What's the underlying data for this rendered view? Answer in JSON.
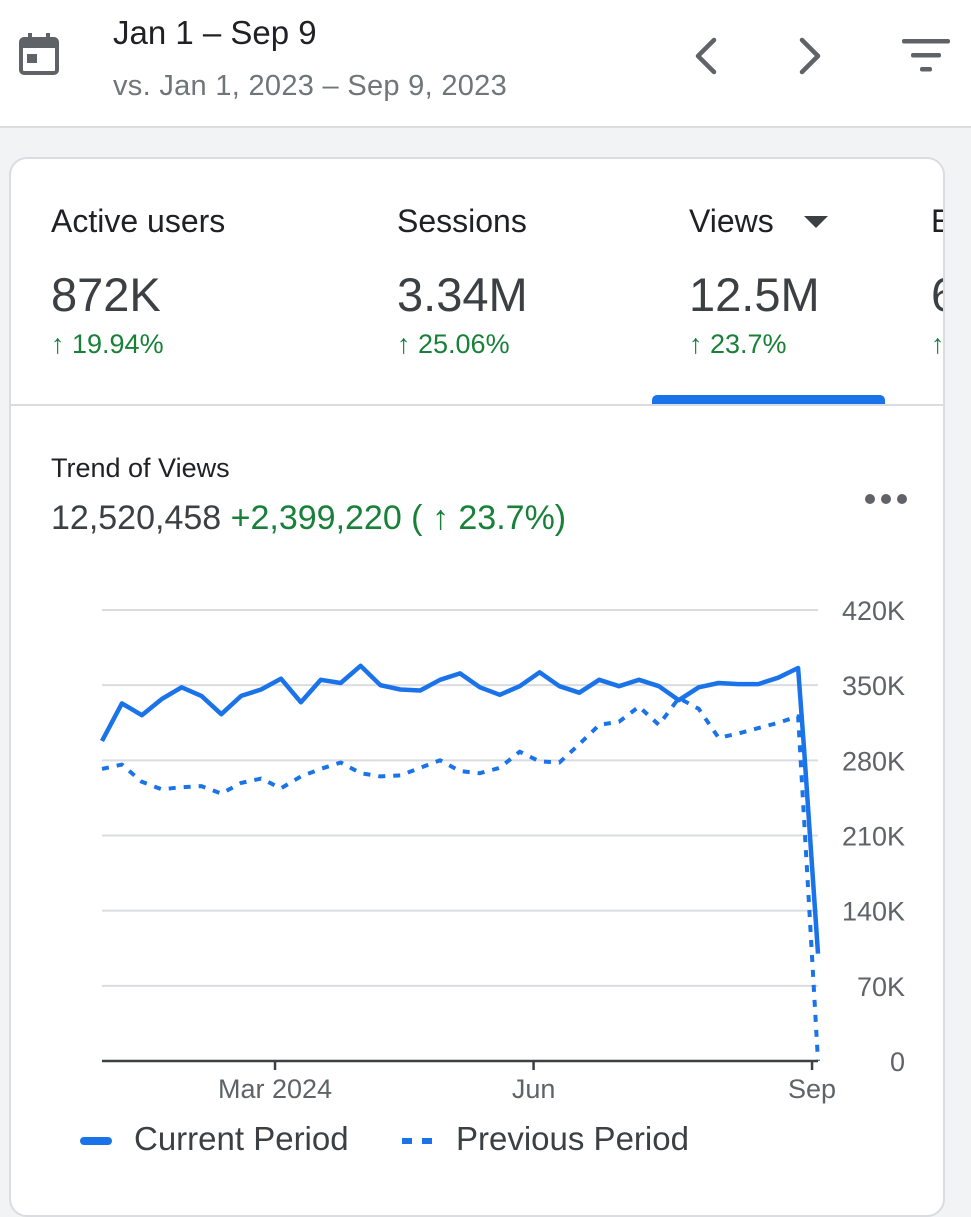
{
  "header": {
    "date_range": "Jan 1 – Sep 9",
    "comparison": "vs. Jan 1, 2023 – Sep 9, 2023",
    "icons": [
      "calendar-icon",
      "chevron-left-icon",
      "chevron-right-icon",
      "filter-icon"
    ]
  },
  "metrics": [
    {
      "label": "Active users",
      "value": "872K",
      "change": "↑ 19.94%"
    },
    {
      "label": "Sessions",
      "value": "3.34M",
      "change": "↑ 25.06%"
    },
    {
      "label": "Views",
      "value": "12.5M",
      "change": "↑ 23.7%",
      "selected": true
    },
    {
      "label": "E",
      "value": "6",
      "change": "↑"
    }
  ],
  "trend": {
    "title": "Trend of Views",
    "total": "12,520,458",
    "delta": "+2,399,220 ( ↑ 23.7%)"
  },
  "colors": {
    "accent": "#1a73e8",
    "positive": "#188038",
    "grid": "#dadce0"
  },
  "chart_data": {
    "type": "line",
    "ylim": [
      0,
      420000
    ],
    "yticks": [
      "0",
      "70K",
      "140K",
      "210K",
      "280K",
      "350K",
      "420K"
    ],
    "ytick_values": [
      0,
      70000,
      140000,
      210000,
      280000,
      350000,
      420000
    ],
    "xticks": [
      "Mar 2024",
      "Jun",
      "Sep"
    ],
    "xtick_positions": [
      8.7,
      21.7,
      35.7
    ],
    "x_range": [
      0,
      36
    ],
    "legend": [
      "Current Period",
      "Previous Period"
    ],
    "series": [
      {
        "name": "Current Period",
        "style": "solid",
        "x": [
          0,
          1,
          2,
          3,
          4,
          5,
          6,
          7,
          8,
          9,
          10,
          11,
          12,
          13,
          14,
          15,
          16,
          17,
          18,
          19,
          20,
          21,
          22,
          23,
          24,
          25,
          26,
          27,
          28,
          29,
          30,
          31,
          32,
          33,
          34,
          35,
          35.3,
          36
        ],
        "values": [
          298000,
          333000,
          322000,
          337000,
          348000,
          340000,
          323000,
          340000,
          346000,
          356000,
          334000,
          355000,
          352000,
          368000,
          350000,
          346000,
          345000,
          355000,
          361000,
          348000,
          341000,
          349000,
          362000,
          349000,
          343000,
          355000,
          349000,
          355000,
          349000,
          336000,
          348000,
          352000,
          351000,
          351000,
          357000,
          366000,
          290000,
          100000
        ]
      },
      {
        "name": "Previous Period",
        "style": "dashed",
        "x": [
          0,
          1,
          2,
          3,
          4,
          5,
          6,
          7,
          8,
          9,
          10,
          11,
          12,
          13,
          14,
          15,
          16,
          17,
          18,
          19,
          20,
          21,
          22,
          23,
          24,
          25,
          26,
          27,
          28,
          29,
          30,
          31,
          32,
          33,
          34,
          35,
          35.6,
          36
        ],
        "values": [
          272000,
          276000,
          260000,
          253000,
          255000,
          256000,
          249000,
          259000,
          263000,
          254000,
          265000,
          272000,
          278000,
          268000,
          265000,
          266000,
          273000,
          280000,
          270000,
          268000,
          273000,
          288000,
          279000,
          278000,
          295000,
          313000,
          316000,
          330000,
          313000,
          338000,
          328000,
          301000,
          305000,
          310000,
          315000,
          321000,
          130000,
          0
        ]
      }
    ]
  }
}
